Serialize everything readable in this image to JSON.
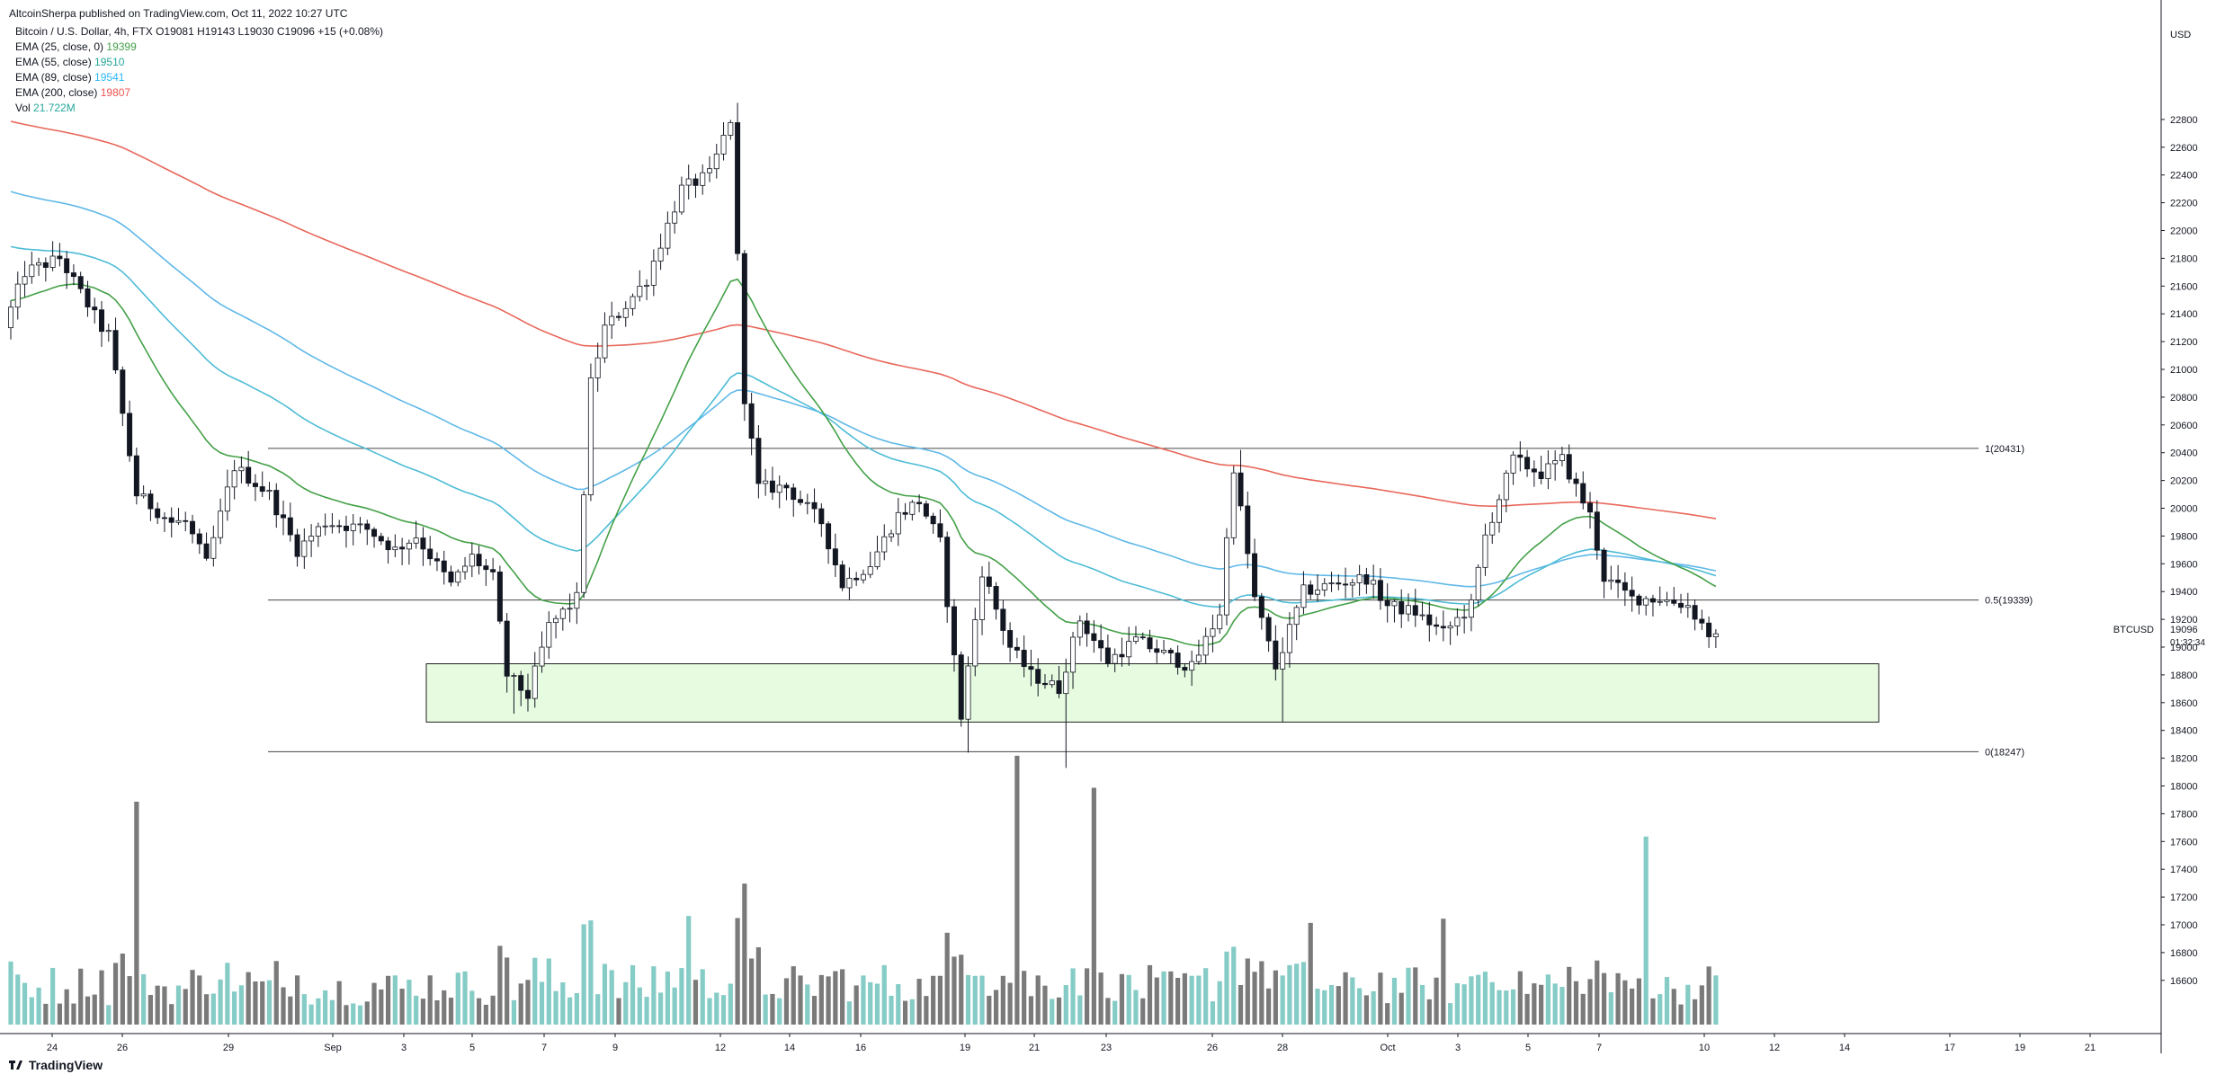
{
  "header": {
    "publisher_line": "AltcoinSherpa published on TradingView.com, Oct 11, 2022 10:27 UTC"
  },
  "symbol_line": {
    "name": "Bitcoin / U.S. Dollar, 4h, FTX",
    "open": "O19081",
    "high": "H19143",
    "low": "L19030",
    "close": "C19096",
    "change": "+15 (+0.08%)"
  },
  "indicators": [
    {
      "label": "EMA (25, close, 0)",
      "value": "19399",
      "color": "#43a047"
    },
    {
      "label": "EMA (55, close)",
      "value": "19510",
      "color": "#26a69a"
    },
    {
      "label": "EMA (89, close)",
      "value": "19541",
      "color": "#4fc3f7"
    },
    {
      "label": "EMA (200, close)",
      "value": "19807",
      "color": "#ef5350"
    },
    {
      "label": "Vol",
      "value": "21.722M",
      "color": "#26a69a"
    }
  ],
  "branding": {
    "footer": "TradingView"
  },
  "colors": {
    "up_candle": "#ffffff",
    "candle_border": "#131722",
    "down_candle": "#131722",
    "ema25": "#43a047",
    "ema55": "#4dbcd6",
    "ema89": "#5fb8e8",
    "ema200": "#e8675a",
    "vol_up": "#85cbc6",
    "vol_down": "#7a7a7a",
    "zone_fill": "#e6fbe0",
    "fib_line": "#444444"
  },
  "chart_data": {
    "type": "candlestick",
    "timeframe": "4h",
    "y_axis_label": "USD",
    "ylim": [
      16480,
      23960
    ],
    "y_ticks": [
      16600,
      16800,
      17000,
      17200,
      17400,
      17600,
      17800,
      18000,
      18200,
      18400,
      18600,
      18800,
      19000,
      19200,
      19400,
      19600,
      19800,
      20000,
      20200,
      20400,
      20600,
      20800,
      21000,
      21200,
      21400,
      21600,
      21800,
      22000,
      22200,
      22400,
      22600,
      22800
    ],
    "x_tick_labels": [
      "24",
      "26",
      "29",
      "Sep",
      "3",
      "5",
      "7",
      "9",
      "12",
      "14",
      "16",
      "19",
      "21",
      "23",
      "26",
      "28",
      "Oct",
      "3",
      "5",
      "7",
      "10",
      "12",
      "14",
      "17",
      "19",
      "21"
    ],
    "last_price": {
      "symbol": "BTCUSD",
      "price": "19096",
      "countdown": "01:32:34"
    },
    "fib_levels": [
      {
        "label": "1(20431)",
        "price": 20431
      },
      {
        "label": "0.5(19339)",
        "price": 19339
      },
      {
        "label": "0(18247)",
        "price": 18247
      }
    ],
    "support_zone": {
      "top": 18880,
      "bottom": 18460
    },
    "price_anchors": [
      [
        0,
        21300
      ],
      [
        3,
        21700
      ],
      [
        8,
        21800
      ],
      [
        14,
        21300
      ],
      [
        15,
        21250
      ],
      [
        19,
        20100
      ],
      [
        24,
        19900
      ],
      [
        26,
        19900
      ],
      [
        29,
        19600
      ],
      [
        33,
        20300
      ],
      [
        38,
        20100
      ],
      [
        42,
        19700
      ],
      [
        46,
        19900
      ],
      [
        52,
        19850
      ],
      [
        56,
        19700
      ],
      [
        59,
        19800
      ],
      [
        64,
        19450
      ],
      [
        67,
        19650
      ],
      [
        70,
        19500
      ],
      [
        72,
        18800
      ],
      [
        75,
        18650
      ],
      [
        78,
        19150
      ],
      [
        82,
        19350
      ],
      [
        84,
        20900
      ],
      [
        86,
        21300
      ],
      [
        88,
        21400
      ],
      [
        92,
        21650
      ],
      [
        97,
        22300
      ],
      [
        101,
        22400
      ],
      [
        104,
        22800
      ],
      [
        106,
        20800
      ],
      [
        108,
        20150
      ],
      [
        112,
        20150
      ],
      [
        117,
        19900
      ],
      [
        120,
        19450
      ],
      [
        124,
        19600
      ],
      [
        128,
        19950
      ],
      [
        131,
        20050
      ],
      [
        134,
        19750
      ],
      [
        137,
        18500
      ],
      [
        140,
        19550
      ],
      [
        144,
        19000
      ],
      [
        147,
        18800
      ],
      [
        151,
        18700
      ],
      [
        154,
        19200
      ],
      [
        158,
        18900
      ],
      [
        162,
        19050
      ],
      [
        166,
        18950
      ],
      [
        170,
        18850
      ],
      [
        174,
        19250
      ],
      [
        176,
        20300
      ],
      [
        179,
        19350
      ],
      [
        182,
        18850
      ],
      [
        186,
        19400
      ],
      [
        190,
        19450
      ],
      [
        195,
        19500
      ],
      [
        198,
        19300
      ],
      [
        202,
        19250
      ],
      [
        206,
        19100
      ],
      [
        210,
        19300
      ],
      [
        212,
        19800
      ],
      [
        216,
        20350
      ],
      [
        220,
        20250
      ],
      [
        223,
        20350
      ],
      [
        227,
        19950
      ],
      [
        229,
        19500
      ],
      [
        233,
        19350
      ],
      [
        237,
        19350
      ],
      [
        241,
        19300
      ],
      [
        244,
        19096
      ]
    ],
    "volume_spikes": [
      [
        18,
        1600
      ],
      [
        82,
        720
      ],
      [
        97,
        780
      ],
      [
        144,
        1930
      ],
      [
        155,
        1700
      ],
      [
        186,
        730
      ],
      [
        205,
        760
      ],
      [
        234,
        1350
      ]
    ]
  }
}
